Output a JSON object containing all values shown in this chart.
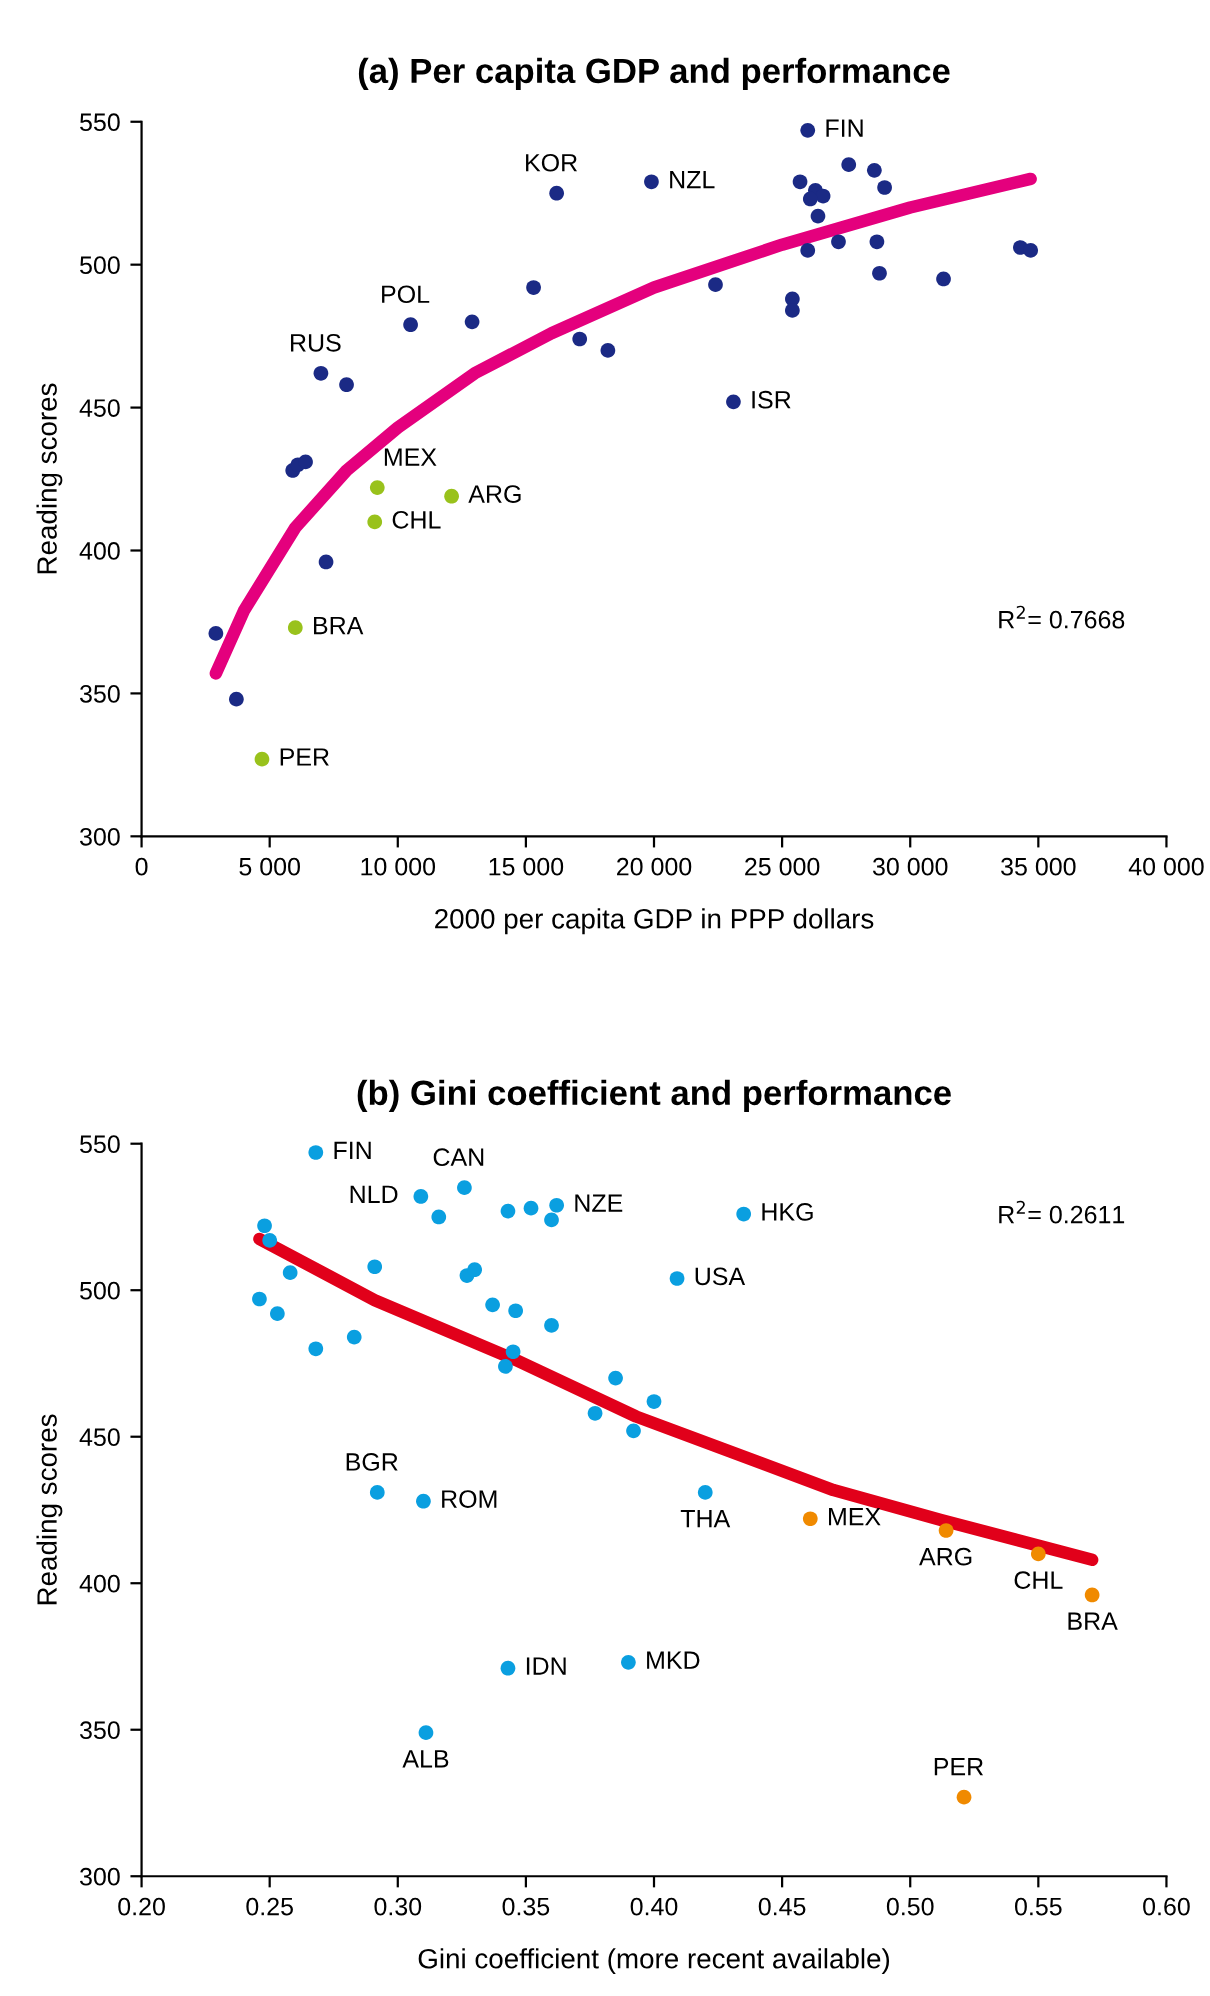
{
  "chart_data": [
    {
      "type": "scatter",
      "title": "(a) Per capita GDP and performance",
      "xlabel": "2000 per capita GDP in PPP dollars",
      "ylabel": "Reading scores",
      "grid": false,
      "xlim": [
        0,
        40000
      ],
      "ylim": [
        300,
        550
      ],
      "xticks": [
        0,
        {
          "value": 5000,
          "label": "5 000"
        },
        {
          "value": 10000,
          "label": "10 000"
        },
        {
          "value": 15000,
          "label": "15 000"
        },
        {
          "value": 20000,
          "label": "20 000"
        },
        {
          "value": 25000,
          "label": "25 000"
        },
        {
          "value": 30000,
          "label": "30 000"
        },
        {
          "value": 35000,
          "label": "35 000"
        },
        {
          "value": 40000,
          "label": "40 000"
        }
      ],
      "yticks": [
        300,
        350,
        400,
        450,
        500,
        550
      ],
      "series": [
        {
          "color": "#1b2a85",
          "marker": "circle",
          "x": [
            2900,
            3700,
            5900,
            6100,
            6400,
            7200,
            7000,
            8000,
            10500,
            12900,
            15300,
            17100,
            18200,
            16200,
            19900,
            26000,
            27600,
            28600,
            29000,
            25700,
            26300,
            26600,
            26100,
            26400,
            26000,
            27200,
            28700,
            28800,
            31300,
            34300,
            34700,
            22400,
            25400,
            25400,
            23100
          ],
          "values": [
            371,
            348,
            428,
            430,
            431,
            396,
            462,
            458,
            479,
            480,
            492,
            474,
            470,
            525,
            529,
            547,
            535,
            533,
            527,
            529,
            526,
            524,
            523,
            517,
            505,
            508,
            508,
            497,
            495,
            506,
            505,
            493,
            488,
            484,
            452
          ]
        },
        {
          "color": "#99c21c",
          "marker": "circle",
          "x": [
            4700,
            6000,
            9200,
            9100,
            12100
          ],
          "values": [
            327,
            373,
            422,
            410,
            419
          ]
        },
        {
          "type": "line",
          "color": "#e4007d",
          "x": [
            2900,
            4000,
            6000,
            8000,
            10000,
            13000,
            16000,
            20000,
            25000,
            30000,
            34700
          ],
          "values": [
            357,
            379,
            408,
            428,
            443,
            462,
            476,
            492,
            507,
            520,
            530
          ]
        }
      ],
      "annotations": [
        {
          "text": "KOR",
          "x": 16200,
          "y": 525
        },
        {
          "text": "NZL",
          "x": 19900,
          "y": 529
        },
        {
          "text": "FIN",
          "x": 26000,
          "y": 547
        },
        {
          "text": "POL",
          "x": 10500,
          "y": 479
        },
        {
          "text": "RUS",
          "x": 7000,
          "y": 462
        },
        {
          "text": "ISR",
          "x": 23100,
          "y": 452
        },
        {
          "text": "MEX",
          "x": 9200,
          "y": 422
        },
        {
          "text": "ARG",
          "x": 12100,
          "y": 419
        },
        {
          "text": "CHL",
          "x": 9100,
          "y": 410
        },
        {
          "text": "BRA",
          "x": 6000,
          "y": 373
        },
        {
          "text": "PER",
          "x": 4700,
          "y": 327
        },
        "R$^{2}$= 0.7668"
      ]
    },
    {
      "type": "scatter",
      "title": "(b) Gini coefficient and performance",
      "xlabel": "Gini coefficient (more recent available)",
      "ylabel": "Reading scores",
      "grid": false,
      "xlim": [
        0.2,
        0.6
      ],
      "ylim": [
        300,
        550
      ],
      "xticks": [
        {
          "value": 0.2,
          "label": "0.20"
        },
        {
          "value": 0.25,
          "label": "0.25"
        },
        {
          "value": 0.3,
          "label": "0.30"
        },
        {
          "value": 0.35,
          "label": "0.35"
        },
        {
          "value": 0.4,
          "label": "0.40"
        },
        {
          "value": 0.45,
          "label": "0.45"
        },
        {
          "value": 0.5,
          "label": "0.50"
        },
        {
          "value": 0.55,
          "label": "0.55"
        },
        {
          "value": 0.6,
          "label": "0.60"
        }
      ],
      "yticks": [
        300,
        350,
        400,
        450,
        500,
        550
      ],
      "series": [
        {
          "color": "#0a9fe0",
          "marker": "circle",
          "x": [
            0.268,
            0.309,
            0.326,
            0.316,
            0.343,
            0.352,
            0.362,
            0.36,
            0.248,
            0.25,
            0.258,
            0.291,
            0.327,
            0.33,
            0.246,
            0.253,
            0.268,
            0.283,
            0.337,
            0.346,
            0.36,
            0.345,
            0.342,
            0.385,
            0.4,
            0.377,
            0.392,
            0.409,
            0.292,
            0.31,
            0.343,
            0.39,
            0.311,
            0.435,
            0.42
          ],
          "values": [
            547,
            532,
            535,
            525,
            527,
            528,
            529,
            524,
            522,
            517,
            506,
            508,
            505,
            507,
            497,
            492,
            480,
            484,
            495,
            493,
            488,
            479,
            474,
            470,
            462,
            458,
            452,
            504,
            431,
            428,
            371,
            373,
            349,
            526,
            431
          ]
        },
        {
          "color": "#f08a00",
          "marker": "circle",
          "x": [
            0.461,
            0.514,
            0.55,
            0.571,
            0.521
          ],
          "values": [
            422,
            418,
            410,
            396,
            327
          ]
        },
        {
          "type": "line",
          "color": "#e1001a",
          "x": [
            0.246,
            0.291,
            0.346,
            0.393,
            0.47,
            0.512,
            0.571
          ],
          "values": [
            517.5,
            496.6,
            476.2,
            456.9,
            431.8,
            421.6,
            408
          ]
        }
      ],
      "annotations": [
        {
          "text": "FIN",
          "x": 0.268,
          "y": 547
        },
        {
          "text": "NLD",
          "x": 0.309,
          "y": 532
        },
        {
          "text": "CAN",
          "x": 0.326,
          "y": 535
        },
        {
          "text": "NZE",
          "x": 0.362,
          "y": 529
        },
        {
          "text": "HKG",
          "x": 0.435,
          "y": 526
        },
        {
          "text": "USA",
          "x": 0.409,
          "y": 504
        },
        {
          "text": "BGR",
          "x": 0.292,
          "y": 431
        },
        {
          "text": "ROM",
          "x": 0.31,
          "y": 428
        },
        {
          "text": "THA",
          "x": 0.42,
          "y": 431
        },
        {
          "text": "MEX",
          "x": 0.461,
          "y": 422
        },
        {
          "text": "ARG",
          "x": 0.514,
          "y": 418
        },
        {
          "text": "CHL",
          "x": 0.55,
          "y": 410
        },
        {
          "text": "BRA",
          "x": 0.571,
          "y": 396
        },
        {
          "text": "IDN",
          "x": 0.343,
          "y": 371
        },
        {
          "text": "MKD",
          "x": 0.39,
          "y": 373
        },
        {
          "text": "ALB",
          "x": 0.311,
          "y": 349
        },
        {
          "text": "PER",
          "x": 0.521,
          "y": 327
        },
        "R$^{2}$= 0.2611"
      ]
    }
  ]
}
